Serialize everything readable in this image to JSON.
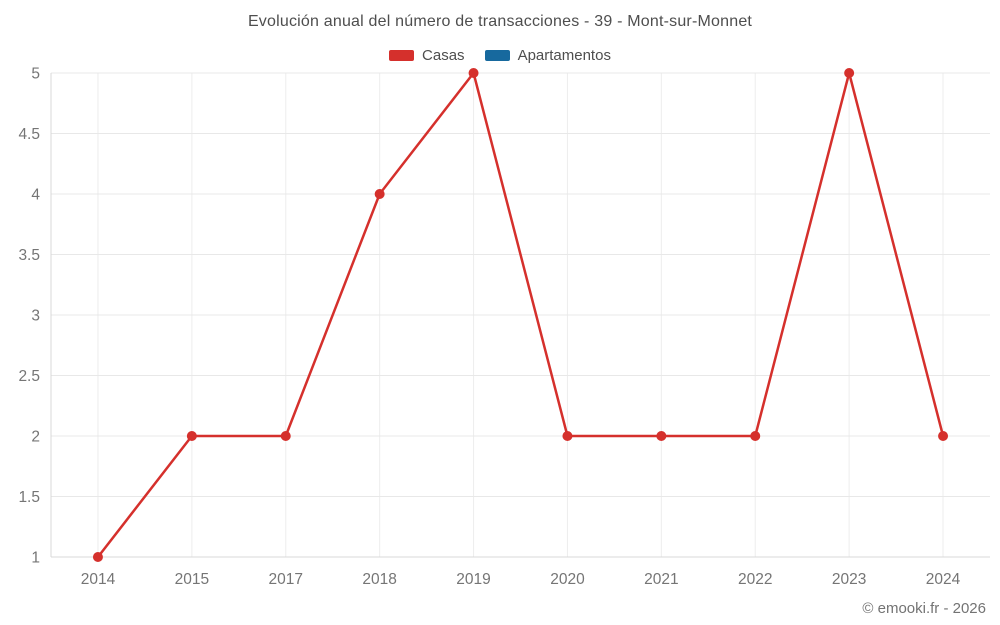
{
  "chart": {
    "title": "Evolución anual del número de transacciones - 39 - Mont-sur-Monnet",
    "footer": "© emooki.fr - 2026"
  },
  "colors": {
    "casas": "#d5302c",
    "apartamentos": "#17699e",
    "grid_h": "#e8e8e8",
    "grid_v": "#ededed",
    "axis": "#d9d9d9",
    "tick_text": "#757575",
    "title_text": "#4e4e4e",
    "footer_text": "#737373"
  },
  "legend": {
    "items": [
      {
        "label": "Casas",
        "color": "#d5302c"
      },
      {
        "label": "Apartamentos",
        "color": "#17699e"
      }
    ]
  },
  "chart_data": {
    "type": "line",
    "title": "Evolución anual del número de transacciones - 39 - Mont-sur-Monnet",
    "categories": [
      "2014",
      "2015",
      "2017",
      "2018",
      "2019",
      "2020",
      "2021",
      "2022",
      "2023",
      "2024"
    ],
    "series": [
      {
        "name": "Casas",
        "color": "#d5302c",
        "values": [
          1,
          2,
          2,
          4,
          5,
          2,
          2,
          2,
          5,
          2
        ]
      },
      {
        "name": "Apartamentos",
        "color": "#17699e",
        "values": []
      }
    ],
    "xlabel": "",
    "ylabel": "",
    "ylim": [
      1,
      5
    ],
    "yticks": [
      1,
      1.5,
      2,
      2.5,
      3,
      3.5,
      4,
      4.5,
      5
    ],
    "grid": true,
    "legend_position": "top"
  }
}
